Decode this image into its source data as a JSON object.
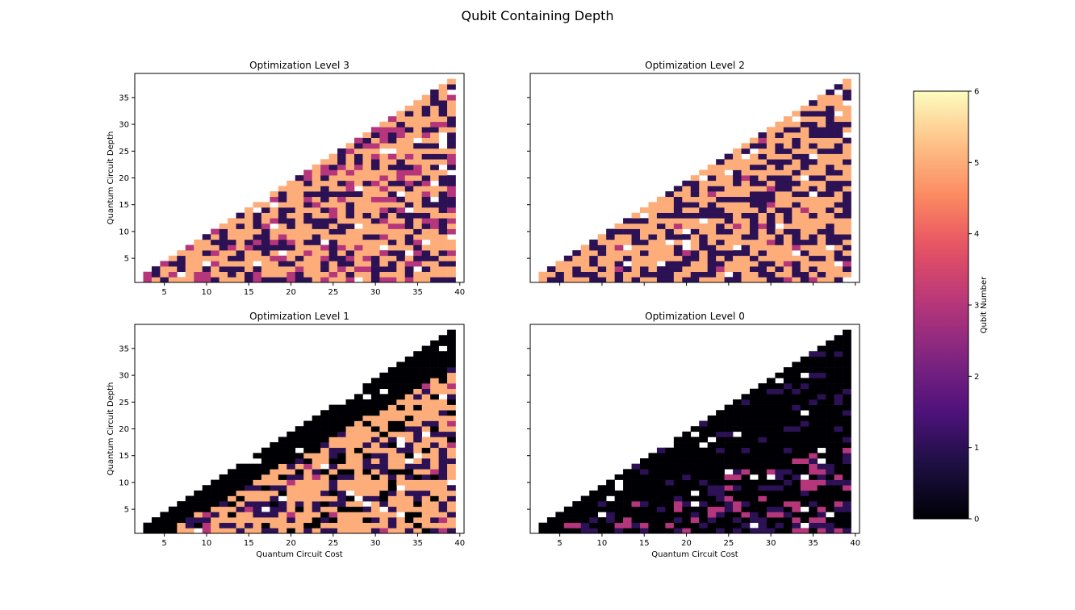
{
  "figure": {
    "suptitle": "Qubit Containing Depth"
  },
  "chart_data": [
    {
      "type": "heatmap",
      "title": "Optimization Level 3",
      "xlabel": "",
      "ylabel": "Quantum Circuit Depth",
      "xlim": [
        1.5,
        40.5
      ],
      "ylim": [
        0.5,
        39.5
      ],
      "xticks": [
        "5",
        "10",
        "15",
        "20",
        "25",
        "30",
        "35",
        "40"
      ],
      "yticks": [
        "5",
        "10",
        "15",
        "20",
        "25",
        "30",
        "35"
      ],
      "palette": {
        "primary": 5,
        "secondary": 1,
        "accent": 3,
        "dark": 0
      },
      "weights": [
        0.55,
        0.3,
        0.15,
        0.0
      ],
      "seed": 3
    },
    {
      "type": "heatmap",
      "title": "Optimization Level 2",
      "xlabel": "",
      "ylabel": "",
      "xlim": [
        1.5,
        40.5
      ],
      "ylim": [
        0.5,
        39.5
      ],
      "xticks": [
        "",
        "",
        "",
        "",
        "",
        "",
        "",
        ""
      ],
      "yticks": [
        "",
        "",
        "",
        "",
        "",
        "",
        ""
      ],
      "palette": {
        "primary": 5,
        "secondary": 1,
        "accent": 3,
        "dark": 0
      },
      "weights": [
        0.55,
        0.43,
        0.02,
        0.0
      ],
      "seed": 2
    },
    {
      "type": "heatmap",
      "title": "Optimization Level 1",
      "xlabel": "Quantum Circuit Cost",
      "ylabel": "Quantum Circuit Depth",
      "xlim": [
        1.5,
        40.5
      ],
      "ylim": [
        0.5,
        39.5
      ],
      "xticks": [
        "5",
        "10",
        "15",
        "20",
        "25",
        "30",
        "35",
        "40"
      ],
      "yticks": [
        "5",
        "10",
        "15",
        "20",
        "25",
        "30",
        "35"
      ],
      "palette": {
        "primary": 5,
        "secondary": 1,
        "accent": 3,
        "dark": 0
      },
      "weights": [
        0.55,
        0.25,
        0.05,
        0.15
      ],
      "dark_edge": 4,
      "seed": 1
    },
    {
      "type": "heatmap",
      "title": "Optimization Level 0",
      "xlabel": "Quantum Circuit Cost",
      "ylabel": "",
      "xlim": [
        1.5,
        40.5
      ],
      "ylim": [
        0.5,
        39.5
      ],
      "xticks": [
        "5",
        "10",
        "15",
        "20",
        "25",
        "30",
        "35",
        "40"
      ],
      "yticks": [
        "",
        "",
        "",
        "",
        "",
        "",
        ""
      ],
      "palette": {
        "primary": 0,
        "secondary": 1,
        "accent": 3,
        "dark": 0
      },
      "weights": [
        0.55,
        0.27,
        0.15,
        0.03
      ],
      "dark_edge": 99,
      "seed": 7
    }
  ],
  "colorbar": {
    "label": "Qubit Number",
    "min": 0,
    "max": 6,
    "ticks": [
      "0",
      "1",
      "2",
      "3",
      "4",
      "5",
      "6"
    ],
    "colormap": "magma"
  }
}
